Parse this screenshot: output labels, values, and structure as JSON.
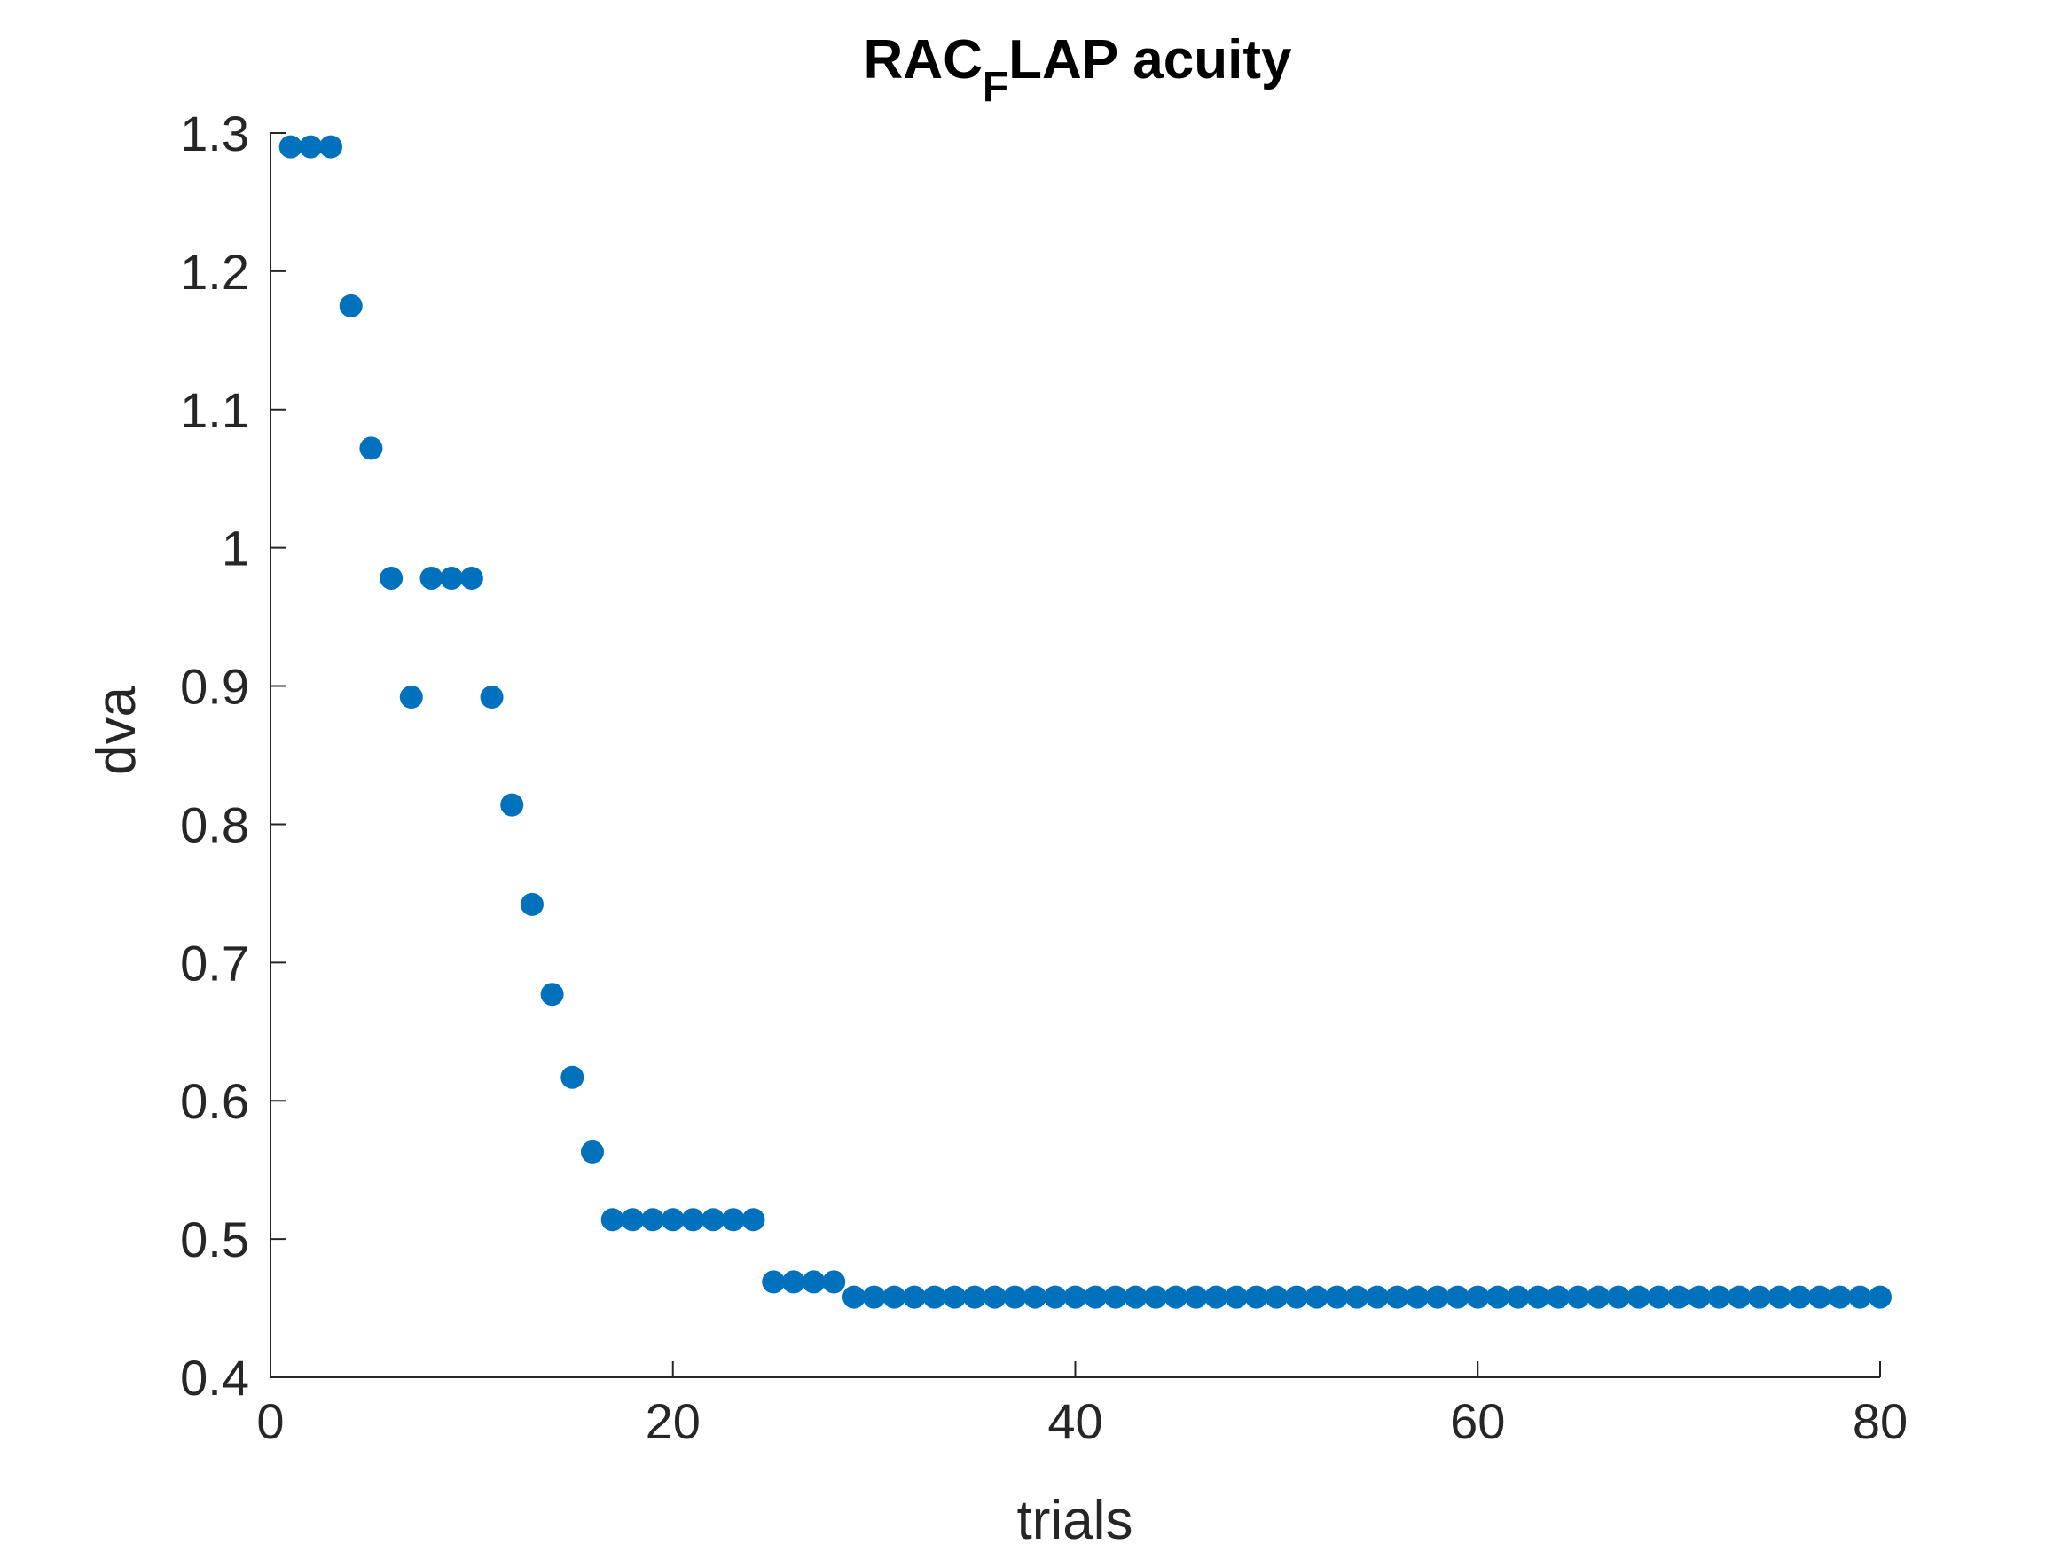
{
  "chart_data": {
    "type": "scatter",
    "title": "RAC",
    "title_subscript": "F",
    "title_suffix": "LAP acuity",
    "xlabel": "trials",
    "ylabel": "dva",
    "xlim": [
      0,
      80
    ],
    "ylim": [
      0.4,
      1.3
    ],
    "xticks": [
      0,
      20,
      40,
      60,
      80
    ],
    "xtick_labels": [
      "0",
      "20",
      "40",
      "60",
      "80"
    ],
    "yticks": [
      0.4,
      0.5,
      0.6,
      0.7,
      0.8,
      0.9,
      1.0,
      1.1,
      1.2,
      1.3
    ],
    "ytick_labels": [
      "0.4",
      "0.5",
      "0.6",
      "0.7",
      "0.8",
      "0.9",
      "1",
      "1.1",
      "1.2",
      "1.3"
    ],
    "grid": false,
    "marker_color": "#0072BD",
    "axis_color": "#262626",
    "series": [
      {
        "x": [
          1,
          2,
          3,
          4,
          5,
          6,
          7,
          8,
          9,
          10,
          11,
          12,
          13,
          14,
          15,
          16,
          17,
          18,
          19,
          20,
          21,
          22,
          23,
          24,
          25,
          26,
          27,
          28,
          29,
          30,
          31,
          32,
          33,
          34,
          35,
          36,
          37,
          38,
          39,
          40,
          41,
          42,
          43,
          44,
          45,
          46,
          47,
          48,
          49,
          50,
          51,
          52,
          53,
          54,
          55,
          56,
          57,
          58,
          59,
          60,
          61,
          62,
          63,
          64,
          65,
          66,
          67,
          68,
          69,
          70,
          71,
          72,
          73,
          74,
          75,
          76,
          77,
          78,
          79,
          80
        ],
        "y": [
          1.29,
          1.29,
          1.29,
          1.175,
          1.072,
          0.978,
          0.892,
          0.978,
          0.978,
          0.978,
          0.892,
          0.814,
          0.742,
          0.677,
          0.617,
          0.563,
          0.514,
          0.514,
          0.514,
          0.514,
          0.514,
          0.514,
          0.514,
          0.514,
          0.469,
          0.469,
          0.469,
          0.469,
          0.458,
          0.458,
          0.458,
          0.458,
          0.458,
          0.458,
          0.458,
          0.458,
          0.458,
          0.458,
          0.458,
          0.458,
          0.458,
          0.458,
          0.458,
          0.458,
          0.458,
          0.458,
          0.458,
          0.458,
          0.458,
          0.458,
          0.458,
          0.458,
          0.458,
          0.458,
          0.458,
          0.458,
          0.458,
          0.458,
          0.458,
          0.458,
          0.458,
          0.458,
          0.458,
          0.458,
          0.458,
          0.458,
          0.458,
          0.458,
          0.458,
          0.458,
          0.458,
          0.458,
          0.458,
          0.458,
          0.458,
          0.458,
          0.458,
          0.458,
          0.458,
          0.458
        ]
      }
    ]
  }
}
